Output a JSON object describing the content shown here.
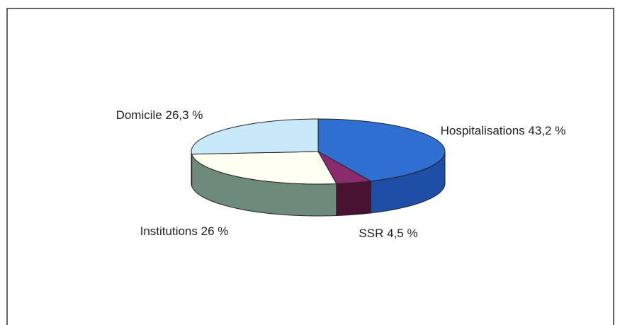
{
  "chart_data": {
    "type": "pie3d",
    "categories": [
      "Hospitalisations",
      "SSR",
      "Institutions",
      "Domicile"
    ],
    "values": [
      43.2,
      4.5,
      26,
      26.3
    ],
    "value_labels": [
      "43,2 %",
      "4,5 %",
      "26 %",
      "26,3 %"
    ],
    "colors": [
      "#2f6fd2",
      "#8c2a6e",
      "#fffff2",
      "#c9e9fb"
    ],
    "side_colors": [
      "#1f4ea6",
      "#4a1232",
      "#6e8a7b",
      "#8fb3c8"
    ]
  }
}
